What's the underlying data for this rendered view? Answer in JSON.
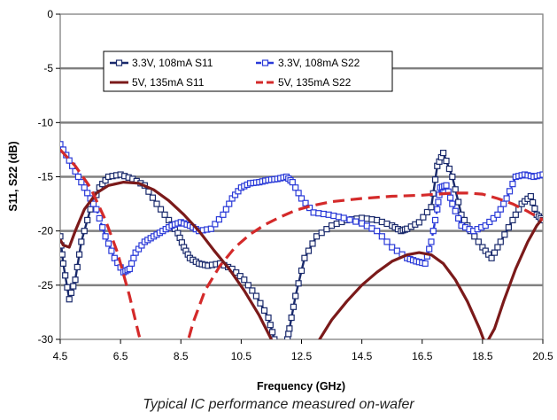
{
  "caption": "Typical IC performance measured on-wafer",
  "chart_data": {
    "type": "line",
    "xlabel": "Frequency (GHz)",
    "ylabel": "S11, S22 (dB)",
    "xlim": [
      4.5,
      20.5
    ],
    "ylim": [
      -30,
      0
    ],
    "xticks": [
      "4.5",
      "6.5",
      "8.5",
      "10.5",
      "12.5",
      "14.5",
      "16.5",
      "18.5",
      "20.5"
    ],
    "yticks": [
      "0",
      "-5",
      "-10",
      "-15",
      "-20",
      "-25",
      "-30"
    ],
    "grid": "horizontal",
    "legend": "top-left",
    "series": [
      {
        "name": "3.3V, 108mA S11",
        "color": "#1a2a6c",
        "style": "solid",
        "marker": "square",
        "x": [
          4.5,
          4.6,
          4.8,
          5.0,
          5.2,
          5.5,
          5.8,
          6.1,
          6.5,
          6.9,
          7.3,
          7.7,
          8.1,
          8.4,
          8.6,
          8.8,
          9.1,
          9.4,
          9.8,
          10.2,
          10.6,
          11.0,
          11.4,
          11.6,
          11.8,
          12.0,
          12.1,
          12.3,
          12.6,
          13.0,
          13.5,
          14.0,
          14.5,
          15.0,
          15.5,
          15.8,
          16.0,
          16.4,
          16.8,
          17.0,
          17.2,
          17.5,
          17.8,
          18.1,
          18.5,
          18.8,
          19.1,
          19.5,
          19.8,
          20.1,
          20.3,
          20.5
        ],
        "y": [
          -20.5,
          -23.0,
          -26.3,
          -24.5,
          -21.0,
          -18.0,
          -16.0,
          -15.0,
          -14.8,
          -15.2,
          -15.8,
          -17.5,
          -19.0,
          -20.2,
          -21.5,
          -22.5,
          -23.0,
          -23.2,
          -23.0,
          -23.5,
          -24.5,
          -26.0,
          -28.0,
          -30.0,
          -31.0,
          -30.5,
          -29.0,
          -26.0,
          -22.5,
          -20.5,
          -19.5,
          -19.0,
          -18.8,
          -19.0,
          -19.5,
          -20.0,
          -19.8,
          -19.2,
          -17.8,
          -14.0,
          -12.8,
          -15.0,
          -18.5,
          -20.0,
          -21.5,
          -22.5,
          -21.0,
          -19.0,
          -17.5,
          -16.8,
          -18.5,
          -19.0
        ]
      },
      {
        "name": "3.3V, 108mA S22",
        "color": "#2a3ad8",
        "style": "dash-dot",
        "marker": "square",
        "x": [
          4.5,
          4.8,
          5.1,
          5.4,
          5.7,
          6.0,
          6.3,
          6.6,
          6.8,
          7.0,
          7.3,
          7.6,
          7.9,
          8.2,
          8.5,
          8.8,
          9.1,
          9.5,
          9.9,
          10.2,
          10.5,
          10.8,
          11.1,
          11.4,
          11.7,
          12.0,
          12.2,
          12.5,
          12.9,
          13.4,
          13.9,
          14.5,
          15.0,
          15.5,
          16.0,
          16.3,
          16.6,
          16.8,
          17.0,
          17.1,
          17.3,
          17.5,
          17.8,
          18.2,
          18.6,
          19.0,
          19.3,
          19.6,
          19.9,
          20.2,
          20.5
        ],
        "y": [
          -12.0,
          -13.5,
          -15.0,
          -16.5,
          -18.0,
          -20.5,
          -22.5,
          -23.8,
          -23.5,
          -22.0,
          -21.0,
          -20.5,
          -20.0,
          -19.5,
          -19.2,
          -19.5,
          -20.0,
          -19.8,
          -18.5,
          -17.0,
          -16.0,
          -15.6,
          -15.5,
          -15.3,
          -15.2,
          -15.0,
          -15.5,
          -17.0,
          -18.3,
          -18.5,
          -18.8,
          -19.3,
          -20.0,
          -21.5,
          -22.5,
          -22.8,
          -23.0,
          -21.0,
          -18.0,
          -16.0,
          -15.8,
          -17.5,
          -19.5,
          -20.0,
          -19.5,
          -18.5,
          -17.0,
          -15.0,
          -14.8,
          -15.0,
          -14.8
        ]
      },
      {
        "name": "5V, 135mA S11",
        "color": "#7b1a1a",
        "style": "solid",
        "marker": "none",
        "x": [
          4.5,
          4.6,
          4.8,
          5.0,
          5.3,
          5.7,
          6.1,
          6.6,
          7.1,
          7.6,
          8.1,
          8.6,
          9.1,
          9.6,
          10.1,
          10.6,
          11.1,
          11.5,
          11.7,
          12.9,
          13.1,
          13.5,
          14.0,
          14.5,
          15.0,
          15.5,
          16.0,
          16.4,
          16.8,
          17.2,
          17.6,
          18.0,
          18.4,
          18.6,
          18.9,
          19.2,
          19.6,
          20.0,
          20.3,
          20.5
        ],
        "y": [
          -20.8,
          -21.3,
          -21.5,
          -20.0,
          -18.0,
          -16.5,
          -15.8,
          -15.5,
          -15.6,
          -16.2,
          -17.2,
          -18.5,
          -20.0,
          -21.8,
          -23.5,
          -25.5,
          -27.8,
          -30.0,
          -31.5,
          -31.5,
          -30.0,
          -28.2,
          -26.5,
          -25.0,
          -23.8,
          -22.8,
          -22.2,
          -22.0,
          -22.2,
          -23.0,
          -24.5,
          -26.5,
          -29.0,
          -30.5,
          -29.0,
          -26.5,
          -23.5,
          -21.0,
          -19.5,
          -18.8
        ]
      },
      {
        "name": "5V, 135mA S22",
        "color": "#d42a2a",
        "style": "dashed",
        "marker": "none",
        "x": [
          4.5,
          5.0,
          5.5,
          6.0,
          6.4,
          6.8,
          7.1,
          7.3,
          8.6,
          8.9,
          9.3,
          9.8,
          10.3,
          10.8,
          11.3,
          11.8,
          12.3,
          12.8,
          13.5,
          14.5,
          15.5,
          16.5,
          17.0,
          17.5,
          18.0,
          18.5,
          19.0,
          19.5,
          20.0,
          20.5
        ],
        "y": [
          -12.5,
          -14.0,
          -16.0,
          -19.0,
          -22.0,
          -26.0,
          -29.5,
          -31.5,
          -31.5,
          -28.5,
          -25.5,
          -23.2,
          -21.5,
          -20.3,
          -19.4,
          -18.7,
          -18.1,
          -17.7,
          -17.3,
          -17.0,
          -16.8,
          -16.7,
          -16.6,
          -16.5,
          -16.5,
          -16.6,
          -17.0,
          -17.5,
          -18.2,
          -19.0
        ]
      }
    ]
  }
}
